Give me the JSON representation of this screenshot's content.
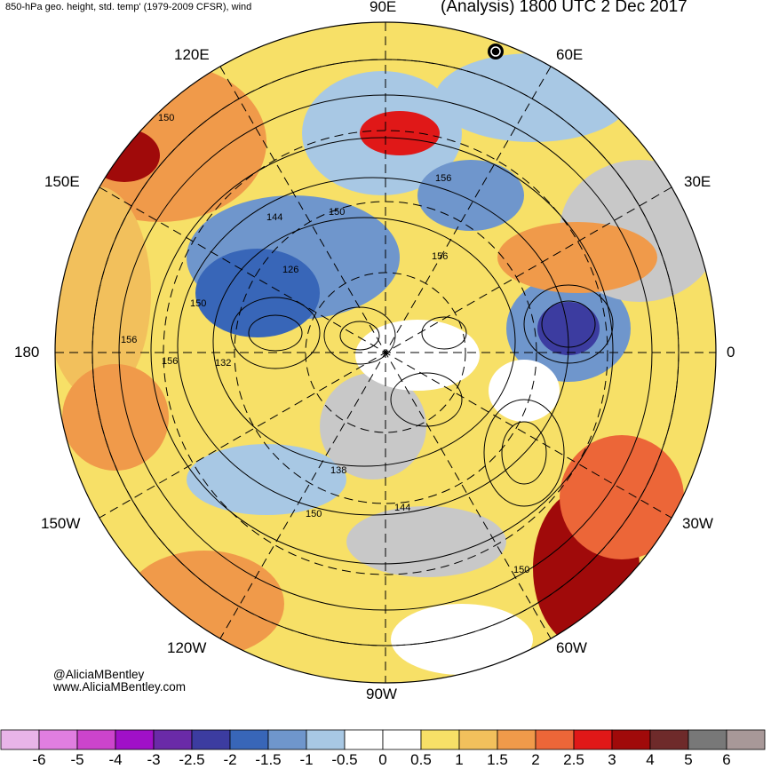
{
  "header": {
    "left_title": "850-hPa geo. height, std. temp' (1979-2009 CFSR), wind",
    "right_title": "(Analysis) 1800 UTC 2 Dec 2017"
  },
  "longitude_labels": {
    "lon_90E": "90E",
    "lon_120E": "120E",
    "lon_60E": "60E",
    "lon_150E": "150E",
    "lon_30E": "30E",
    "lon_180": "180",
    "lon_0": "0",
    "lon_150W": "150W",
    "lon_30W": "30W",
    "lon_120W": "120W",
    "lon_60W": "60W",
    "lon_90W": "90W"
  },
  "contour_labels": [
    "150",
    "144",
    "150",
    "126",
    "150",
    "156",
    "156",
    "132",
    "156",
    "156",
    "138",
    "150",
    "144",
    "150"
  ],
  "credits": {
    "handle": "@AliciaMBentley",
    "site": "www.AliciaMBentley.com"
  },
  "colorbar": {
    "ticks": [
      "-6",
      "-5",
      "-4",
      "-3",
      "-2.5",
      "-2",
      "-1.5",
      "-1",
      "-0.5",
      "0",
      "0.5",
      "1",
      "1.5",
      "2",
      "2.5",
      "3",
      "4",
      "5",
      "6"
    ],
    "colors": [
      "#e8b4e8",
      "#e07ee0",
      "#cc44cc",
      "#a010c8",
      "#6a2aa8",
      "#3c3ca0",
      "#3866b8",
      "#6f96cc",
      "#a8c8e4",
      "#ffffff",
      "#ffffff",
      "#f7e067",
      "#f2c05c",
      "#f09a4a",
      "#ec6638",
      "#e01818",
      "#a00a0a",
      "#6e2a2a",
      "#787878",
      "#a89898"
    ]
  }
}
